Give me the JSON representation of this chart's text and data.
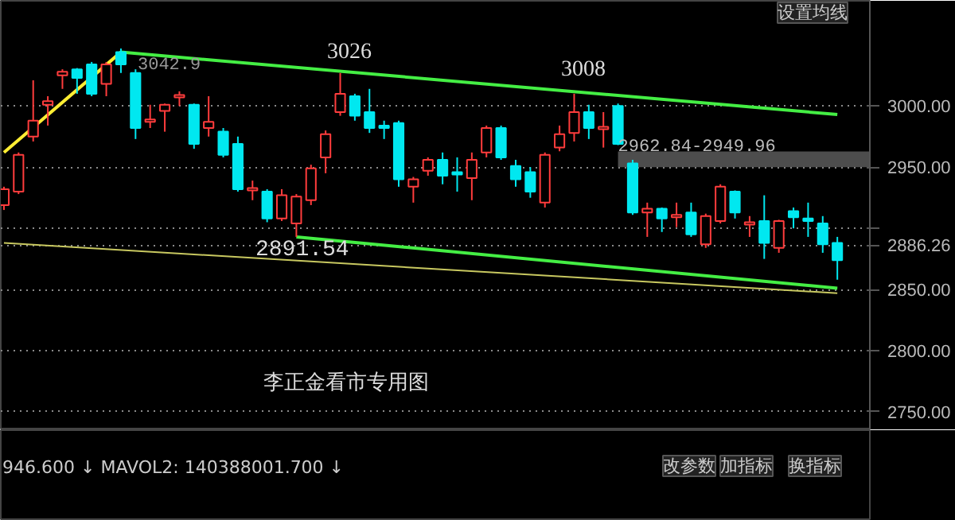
{
  "chart_data": {
    "type": "candlestick",
    "categories": [
      null,
      null,
      null,
      null,
      null,
      null,
      null,
      null,
      null,
      null,
      null,
      null,
      null,
      null,
      null,
      null,
      null,
      null,
      null,
      null,
      null,
      null,
      null,
      null,
      null,
      null,
      null,
      null,
      null,
      null,
      null,
      null,
      null,
      null,
      null,
      null,
      null,
      null,
      null,
      null,
      null,
      null,
      null,
      null,
      null,
      null,
      null,
      null,
      null,
      null,
      null,
      null,
      null,
      null,
      null,
      null,
      null,
      null
    ],
    "ohlc": [
      [
        2919,
        2934,
        2915,
        2932
      ],
      [
        2930,
        2962,
        2928,
        2960
      ],
      [
        2975,
        3021,
        2971,
        2988
      ],
      [
        3001,
        3008,
        2984,
        3004
      ],
      [
        3025,
        3030,
        3014,
        3028
      ],
      [
        3030,
        3031,
        3010,
        3023
      ],
      [
        3034,
        3036,
        3008,
        3010
      ],
      [
        3018,
        3036,
        3008,
        3034
      ],
      [
        3044,
        3047,
        3027,
        3034
      ],
      [
        3027,
        3030,
        2973,
        2982
      ],
      [
        2987,
        3001,
        2982,
        2989
      ],
      [
        2996,
        3002,
        2979,
        3001
      ],
      [
        3007,
        3012,
        3000,
        3009
      ],
      [
        3001,
        3002,
        2965,
        2969
      ],
      [
        2982,
        3008,
        2975,
        2987
      ],
      [
        2979,
        2982,
        2958,
        2960
      ],
      [
        2969,
        2975,
        2930,
        2932
      ],
      [
        2931,
        2939,
        2923,
        2933
      ],
      [
        2930,
        2932,
        2905,
        2908
      ],
      [
        2908,
        2932,
        2906,
        2927
      ],
      [
        2904,
        2928,
        2893,
        2926
      ],
      [
        2923,
        2952,
        2919,
        2949
      ],
      [
        2958,
        2980,
        2945,
        2977
      ],
      [
        2995,
        3027,
        2992,
        3010
      ],
      [
        3008,
        3010,
        2988,
        2992
      ],
      [
        2995,
        3014,
        2978,
        2982
      ],
      [
        2984,
        2988,
        2973,
        2982
      ],
      [
        2986,
        2988,
        2934,
        2940
      ],
      [
        2934,
        2942,
        2921,
        2940
      ],
      [
        2947,
        2958,
        2943,
        2956
      ],
      [
        2956,
        2962,
        2936,
        2943
      ],
      [
        2946,
        2958,
        2930,
        2944
      ],
      [
        2941,
        2962,
        2923,
        2956
      ],
      [
        2962,
        2984,
        2958,
        2982
      ],
      [
        2982,
        2984,
        2956,
        2958
      ],
      [
        2951,
        2956,
        2934,
        2940
      ],
      [
        2946,
        2950,
        2925,
        2930
      ],
      [
        2921,
        2962,
        2917,
        2960
      ],
      [
        2966,
        2984,
        2963,
        2977
      ],
      [
        2978,
        3010,
        2971,
        2995
      ],
      [
        2995,
        3001,
        2973,
        2982
      ],
      [
        2981,
        2995,
        2966,
        2983
      ],
      [
        3000,
        3002,
        2968,
        2969
      ],
      [
        2953,
        2956,
        2911,
        2913
      ],
      [
        2913,
        2921,
        2893,
        2916
      ],
      [
        2916,
        2917,
        2897,
        2908
      ],
      [
        2909,
        2921,
        2901,
        2911
      ],
      [
        2913,
        2921,
        2893,
        2895
      ],
      [
        2887,
        2912,
        2884,
        2910
      ],
      [
        2906,
        2936,
        2904,
        2934
      ],
      [
        2930,
        2931,
        2908,
        2913
      ],
      [
        2903,
        2910,
        2893,
        2905
      ],
      [
        2906,
        2927,
        2875,
        2888
      ],
      [
        2884,
        2907,
        2880,
        2906
      ],
      [
        2914,
        2917,
        2900,
        2909
      ],
      [
        2908,
        2921,
        2893,
        2906
      ],
      [
        2904,
        2910,
        2880,
        2887
      ],
      [
        2888,
        2893,
        2858,
        2874
      ]
    ],
    "colors": [
      "#ff3c3c",
      "#ff3c3c",
      "#ff3c3c",
      "#ff3c3c",
      "#ff3c3c",
      "#00e8f0",
      "#00e8f0",
      "#ff3c3c",
      "#00e8f0",
      "#00e8f0",
      "#ff3c3c",
      "#ff3c3c",
      "#ff3c3c",
      "#00e8f0",
      "#ff3c3c",
      "#00e8f0",
      "#00e8f0",
      "#ff3c3c",
      "#00e8f0",
      "#ff3c3c",
      "#ff3c3c",
      "#ff3c3c",
      "#ff3c3c",
      "#ff3c3c",
      "#00e8f0",
      "#00e8f0",
      "#00e8f0",
      "#00e8f0",
      "#ff3c3c",
      "#ff3c3c",
      "#00e8f0",
      "#00e8f0",
      "#ff3c3c",
      "#ff3c3c",
      "#00e8f0",
      "#00e8f0",
      "#00e8f0",
      "#ff3c3c",
      "#ff3c3c",
      "#ff3c3c",
      "#00e8f0",
      "#ff3c3c",
      "#00e8f0",
      "#00e8f0",
      "#ff3c3c",
      "#00e8f0",
      "#ff3c3c",
      "#00e8f0",
      "#ff3c3c",
      "#ff3c3c",
      "#00e8f0",
      "#ff3c3c",
      "#00e8f0",
      "#ff3c3c",
      "#00e8f0",
      "#00e8f0",
      "#00e8f0",
      "#00e8f0"
    ],
    "series": [
      {
        "type": "line",
        "color": "#44ee44",
        "values": [
          null,
          null,
          null,
          null,
          null,
          null,
          null,
          null,
          3044,
          null,
          null,
          null,
          null,
          null,
          null,
          null,
          null,
          null,
          null,
          null,
          null,
          null,
          null,
          null,
          null,
          null,
          null,
          null,
          null,
          null,
          null,
          null,
          null,
          null,
          null,
          null,
          null,
          null,
          null,
          null,
          null,
          null,
          null,
          null,
          null,
          null,
          null,
          null,
          null,
          null,
          null,
          null,
          null,
          null,
          null,
          null,
          null,
          2993
        ]
      },
      {
        "type": "line",
        "color": "#44ee44",
        "values": [
          null,
          null,
          null,
          null,
          null,
          null,
          null,
          null,
          null,
          null,
          null,
          null,
          null,
          null,
          null,
          null,
          null,
          null,
          null,
          null,
          2893,
          null,
          null,
          null,
          null,
          null,
          null,
          null,
          null,
          null,
          null,
          null,
          null,
          null,
          null,
          null,
          null,
          null,
          null,
          null,
          null,
          null,
          null,
          null,
          null,
          null,
          null,
          null,
          null,
          null,
          null,
          null,
          null,
          null,
          null,
          null,
          null,
          2851
        ]
      },
      {
        "type": "line",
        "color": "#c8c860",
        "values": [
          2888,
          null,
          null,
          null,
          null,
          null,
          null,
          null,
          null,
          null,
          null,
          null,
          null,
          null,
          null,
          null,
          null,
          null,
          null,
          null,
          null,
          null,
          null,
          null,
          null,
          null,
          null,
          null,
          null,
          null,
          null,
          null,
          null,
          null,
          null,
          null,
          null,
          null,
          null,
          null,
          null,
          null,
          null,
          null,
          null,
          null,
          null,
          null,
          null,
          null,
          null,
          null,
          null,
          null,
          null,
          null,
          null,
          2847
        ]
      },
      {
        "type": "line",
        "color": "#ffee33",
        "values": [
          2962,
          null,
          null,
          null,
          null,
          null,
          null,
          null,
          3044,
          null,
          null,
          null,
          null,
          null,
          null,
          null,
          null,
          null,
          null,
          null,
          null,
          null,
          null,
          null,
          null,
          null,
          null,
          null,
          null,
          null,
          null,
          null,
          null,
          null,
          null,
          null,
          null,
          null,
          null,
          null,
          null,
          null,
          null,
          null,
          null,
          null,
          null,
          null,
          null,
          null,
          null,
          null,
          null,
          null,
          null,
          null,
          null,
          null
        ]
      }
    ],
    "bands": [
      {
        "axis": "y",
        "from": 2949.96,
        "to": 2962.84,
        "label": "2962.84-2949.96",
        "color": "#555555"
      }
    ],
    "ylim": [
      2735,
      3086
    ],
    "yticks": [
      {
        "value": 2750,
        "label": "2750.00"
      },
      {
        "value": 2800,
        "label": "2800.00"
      },
      {
        "value": 2850,
        "label": "2850.00"
      },
      {
        "value": 2886.26,
        "label": "2886.26"
      },
      {
        "value": 2900,
        "label": null
      },
      {
        "value": 2950,
        "label": "2950.00"
      },
      {
        "value": 3000,
        "label": "3000.00"
      }
    ],
    "grid": "y",
    "tick_labels": "y",
    "annotations": [
      "3042.9",
      "3026",
      "3008",
      "2891.54",
      "李正金看市专用图",
      "设置均线",
      "946.600 ↓  MAVOL2: 140388001.700 ↓",
      "改参数",
      "加指标",
      "换指标"
    ]
  }
}
